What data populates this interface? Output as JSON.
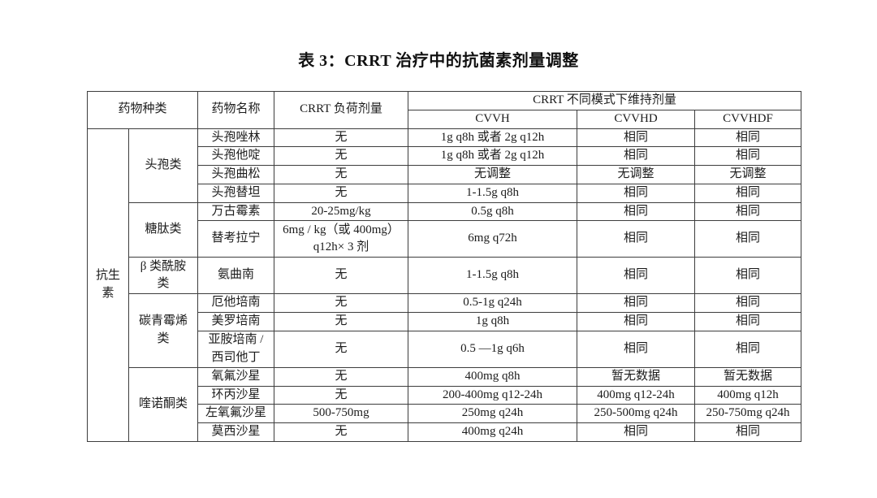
{
  "page": {
    "title": "表 3：CRRT 治疗中的抗菌素剂量调整"
  },
  "table": {
    "headers": {
      "drug_class": "药物种类",
      "drug_name": "药物名称",
      "loading_dose": "CRRT 负荷剂量",
      "maintenance": "CRRT 不同模式下维持剂量",
      "modes": [
        "CVVH",
        "CVVHD",
        "CVVHDF"
      ]
    },
    "category": "抗生\n素",
    "groups": [
      {
        "name": "头孢类",
        "rows": [
          {
            "drug": "头孢唑林",
            "loading": "无",
            "cvvh": "1g q8h 或者 2g q12h",
            "cvvhd": "相同",
            "cvvhdf": "相同",
            "tall": false
          },
          {
            "drug": "头孢他啶",
            "loading": "无",
            "cvvh": "1g q8h 或者 2g q12h",
            "cvvhd": "相同",
            "cvvhdf": "相同",
            "tall": false
          },
          {
            "drug": "头孢曲松",
            "loading": "无",
            "cvvh": "无调整",
            "cvvhd": "无调整",
            "cvvhdf": "无调整",
            "tall": false
          },
          {
            "drug": "头孢替坦",
            "loading": "无",
            "cvvh": "1-1.5g q8h",
            "cvvhd": "相同",
            "cvvhdf": "相同",
            "tall": false
          }
        ]
      },
      {
        "name": "糖肽类",
        "rows": [
          {
            "drug": "万古霉素",
            "loading": "20-25mg/kg",
            "cvvh": "0.5g q8h",
            "cvvhd": "相同",
            "cvvhdf": "相同",
            "tall": false
          },
          {
            "drug": "替考拉宁",
            "loading": "6mg / kg（或 400mg）\nq12h× 3 剂",
            "cvvh": "6mg  q72h",
            "cvvhd": "相同",
            "cvvhdf": "相同",
            "tall": true
          }
        ]
      },
      {
        "name": "β 类酰胺\n类",
        "rows": [
          {
            "drug": "氨曲南",
            "loading": "无",
            "cvvh": "1-1.5g q8h",
            "cvvhd": "相同",
            "cvvhdf": "相同",
            "tall": true
          }
        ]
      },
      {
        "name": "碳青霉烯\n类",
        "rows": [
          {
            "drug": "厄他培南",
            "loading": "无",
            "cvvh": "0.5-1g q24h",
            "cvvhd": "相同",
            "cvvhdf": "相同",
            "tall": false
          },
          {
            "drug": "美罗培南",
            "loading": "无",
            "cvvh": "1g q8h",
            "cvvhd": "相同",
            "cvvhdf": "相同",
            "tall": false
          },
          {
            "drug": "亚胺培南 /\n西司他丁",
            "loading": "无",
            "cvvh": "0.5 —1g q6h",
            "cvvhd": "相同",
            "cvvhdf": "相同",
            "tall": true
          }
        ]
      },
      {
        "name": "喹诺酮类",
        "rows": [
          {
            "drug": "氧氟沙星",
            "loading": "无",
            "cvvh": "400mg q8h",
            "cvvhd": "暂无数据",
            "cvvhdf": "暂无数据",
            "tall": false
          },
          {
            "drug": "环丙沙星",
            "loading": "无",
            "cvvh": "200-400mg q12-24h",
            "cvvhd": "400mg q12-24h",
            "cvvhdf": "400mg q12h",
            "tall": false
          },
          {
            "drug": "左氧氟沙星",
            "loading": "500-750mg",
            "cvvh": "250mg q24h",
            "cvvhd": "250-500mg q24h",
            "cvvhdf": "250-750mg q24h",
            "tall": false
          },
          {
            "drug": "莫西沙星",
            "loading": "无",
            "cvvh": "400mg q24h",
            "cvvhd": "相同",
            "cvvhdf": "相同",
            "tall": false
          }
        ]
      }
    ]
  }
}
